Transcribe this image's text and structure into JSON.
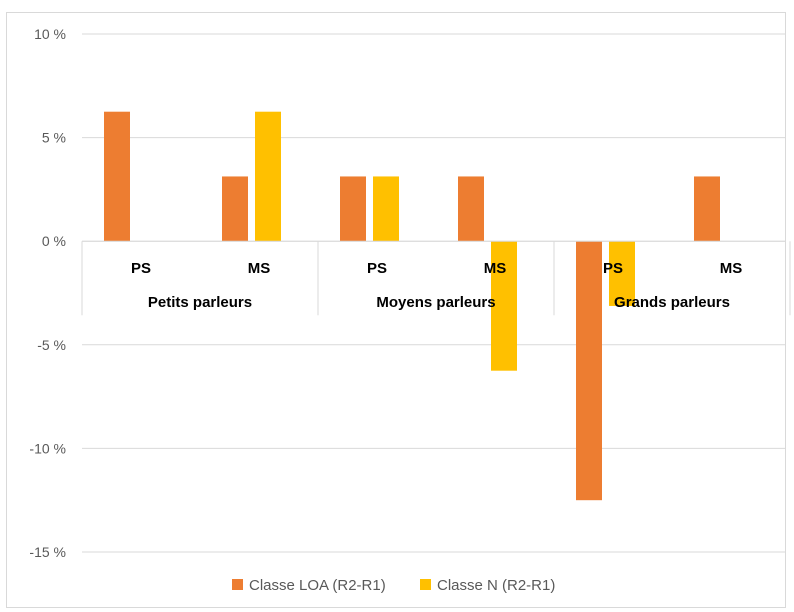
{
  "chart_data": {
    "type": "bar",
    "title": "",
    "xlabel": "",
    "ylabel": "",
    "ylim": [
      -15,
      10
    ],
    "yticks": [
      "10 %",
      "5 %",
      "0 %",
      "-5 %",
      "-10 %",
      "-15 %"
    ],
    "ytick_values": [
      10,
      5,
      0,
      -5,
      -10,
      -15
    ],
    "groups": [
      {
        "label": "Petits parleurs",
        "categories": [
          "PS",
          "MS"
        ]
      },
      {
        "label": "Moyens parleurs",
        "categories": [
          "PS",
          "MS"
        ]
      },
      {
        "label": "Grands parleurs",
        "categories": [
          "PS",
          "MS"
        ]
      }
    ],
    "series": [
      {
        "name": "Classe LOA (R2-R1)",
        "color": "#ED7D31",
        "values": [
          6.25,
          3.125,
          3.125,
          3.125,
          -12.5,
          3.125
        ]
      },
      {
        "name": "Classe N (R2-R1)",
        "color": "#FFC000",
        "values": [
          0,
          6.25,
          3.125,
          -6.25,
          -3.125,
          0
        ]
      }
    ],
    "grid": true,
    "legend_position": "bottom"
  }
}
